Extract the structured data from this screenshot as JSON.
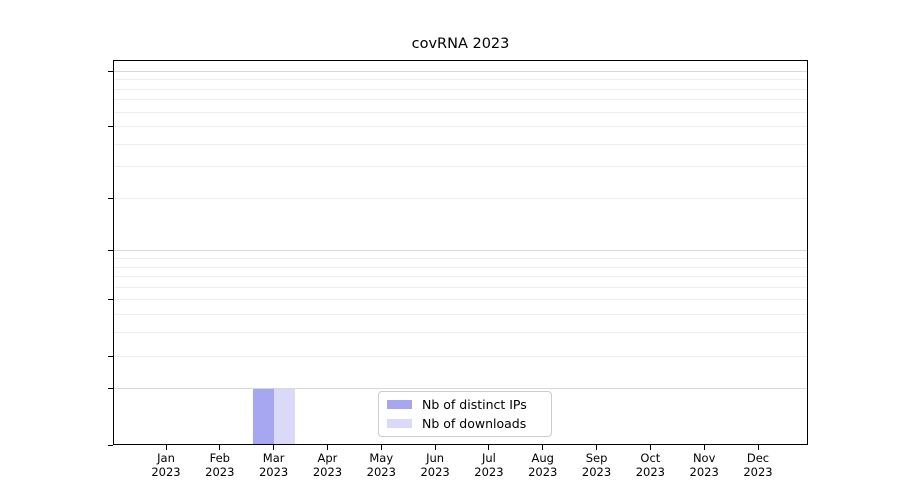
{
  "chart_data": {
    "type": "bar",
    "title": "covRNA 2023",
    "categories": [
      "Jan",
      "Feb",
      "Mar",
      "Apr",
      "May",
      "Jun",
      "Jul",
      "Aug",
      "Sep",
      "Oct",
      "Nov",
      "Dec"
    ],
    "category_year": "2023",
    "series": [
      {
        "name": "Nb of distinct IPs",
        "color": "#a6a6f1",
        "values": [
          0,
          0,
          1,
          0,
          0,
          0,
          0,
          0,
          0,
          0,
          0,
          0
        ]
      },
      {
        "name": "Nb of downloads",
        "color": "#dadaf8",
        "values": [
          0,
          0,
          1,
          0,
          0,
          0,
          0,
          0,
          0,
          0,
          0,
          0
        ]
      }
    ],
    "y_axis": {
      "scale": "log1p",
      "ticks": [
        0,
        1,
        2,
        5,
        10,
        20,
        50,
        100
      ],
      "major_gridlines": [
        1,
        10,
        100
      ],
      "minor_gridlines": [
        2,
        5,
        20,
        50,
        3,
        4,
        6,
        7,
        8,
        9,
        30,
        40,
        60,
        70,
        80,
        90
      ],
      "ylim": [
        0,
        115
      ]
    },
    "x_axis": {
      "tick_count": 12
    },
    "legend": {
      "position": "lower center"
    },
    "grid": "horizontal"
  },
  "colors": {
    "axis": "#000000",
    "text": "#000000",
    "grid_major": "#d8d8d8",
    "grid_minor": "#eeeeee",
    "legend_border": "#cccccc",
    "background": "#ffffff",
    "bar_distinct_ips": "#a6a6f1",
    "bar_downloads": "#dadaf8"
  }
}
